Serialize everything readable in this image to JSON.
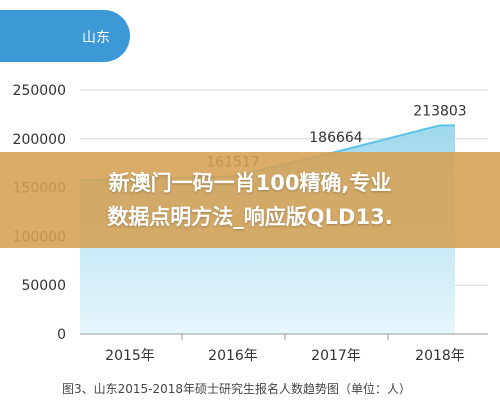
{
  "region_tab": {
    "label": "山东"
  },
  "banner": {
    "line1": "新澳门一码一肖100精确,专业",
    "line2": "数据点明方法_响应版QLD13."
  },
  "caption": "图3、山东2015-2018年硕士研究生报名人数趋势图（单位：人）",
  "colors": {
    "accent": "#3d99d6",
    "area_top": "#9fd9ec",
    "area_bottom": "#e6f6fb",
    "line": "#59c2e5",
    "grid": "#d6d6d6",
    "banner": "#d6a053"
  },
  "chart_data": {
    "type": "area",
    "categories": [
      "2015年",
      "2016年",
      "2017年",
      "2018年"
    ],
    "values": [
      null,
      161517,
      186664,
      213803
    ],
    "data_labels": [
      "",
      "161517",
      "186664",
      "213803"
    ],
    "y_ticks": [
      "0",
      "50000",
      "100000",
      "150000",
      "200000",
      "250000"
    ],
    "ylim": [
      0,
      250000
    ],
    "grid": true
  }
}
